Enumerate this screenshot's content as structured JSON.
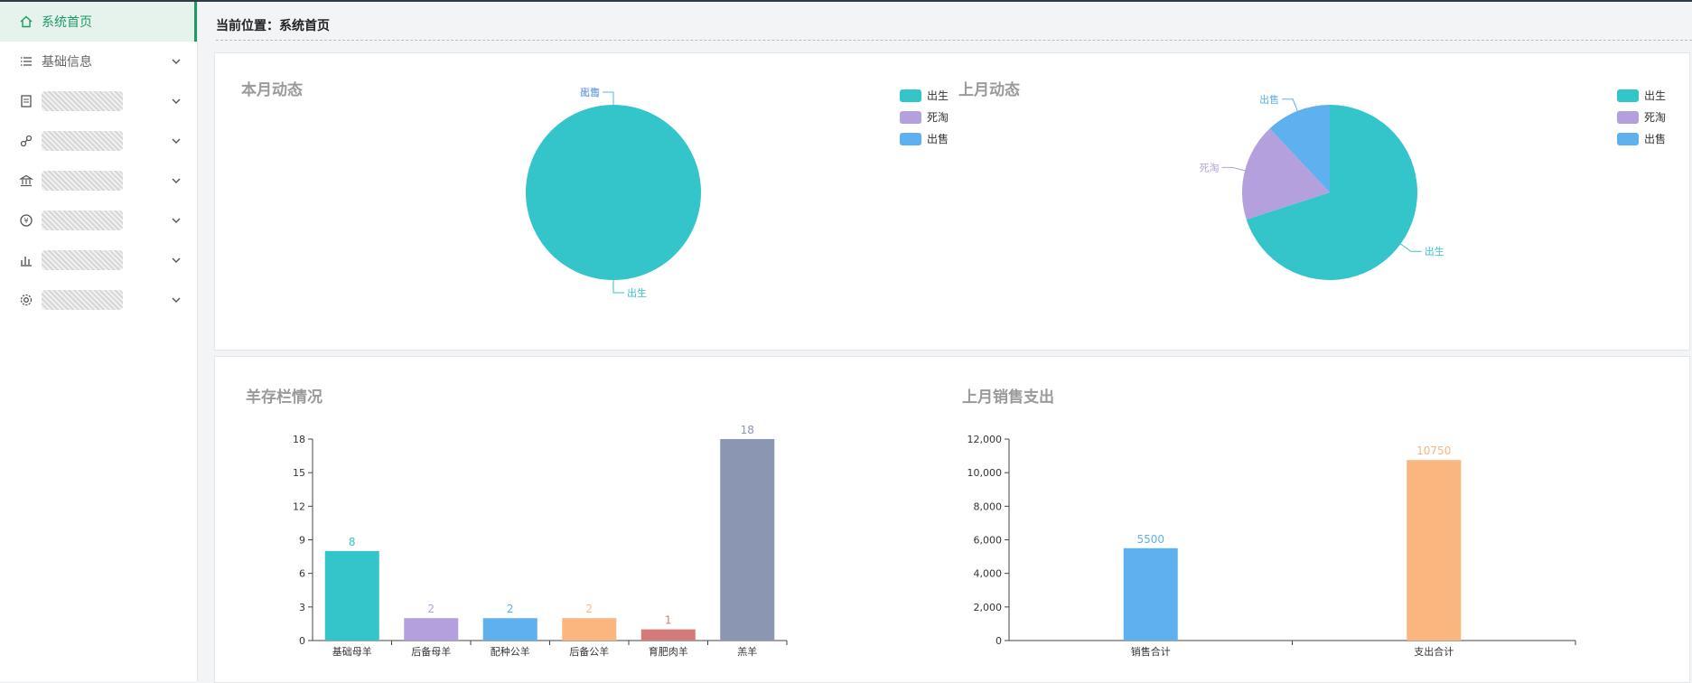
{
  "sidebar": {
    "items": [
      {
        "label": "系统首页",
        "icon": "home-icon",
        "active": true
      },
      {
        "label": "基础信息",
        "icon": "list-icon"
      },
      {
        "label": "",
        "icon": "document-icon"
      },
      {
        "label": "",
        "icon": "link-icon"
      },
      {
        "label": "",
        "icon": "bank-icon"
      },
      {
        "label": "",
        "icon": "money-icon"
      },
      {
        "label": "",
        "icon": "chart-icon"
      },
      {
        "label": "",
        "icon": "gear-icon"
      }
    ]
  },
  "breadcrumb": "当前位置：系统首页",
  "colors": {
    "green": "#1f9a62",
    "teal": "#33c5c9",
    "purple": "#b4a0dd",
    "blue": "#5eb0ee",
    "orange": "#fbb57e",
    "red": "#d47a7c",
    "slate": "#8b97b2"
  },
  "charts": {
    "this_month": {
      "title": "本月动态",
      "type": "pie",
      "legend": [
        "出生",
        "死淘",
        "出售"
      ],
      "slices": [
        {
          "name": "出生",
          "value": 1,
          "color": "#33c5c9"
        },
        {
          "name": "死淘",
          "value": 0,
          "color": "#b4a0dd"
        },
        {
          "name": "出售",
          "value": 0,
          "color": "#5eb0ee"
        }
      ]
    },
    "last_month": {
      "title": "上月动态",
      "type": "pie",
      "legend": [
        "出生",
        "死淘",
        "出售"
      ],
      "slices": [
        {
          "name": "出生",
          "value": 70,
          "color": "#33c5c9"
        },
        {
          "name": "死淘",
          "value": 18,
          "color": "#b4a0dd"
        },
        {
          "name": "出售",
          "value": 12,
          "color": "#5eb0ee"
        }
      ]
    },
    "stock": {
      "title": "羊存栏情况",
      "type": "bar",
      "categories": [
        "基础母羊",
        "后备母羊",
        "配种公羊",
        "后备公羊",
        "育肥肉羊",
        "羔羊"
      ],
      "values": [
        8,
        2,
        2,
        2,
        1,
        18
      ],
      "colors": [
        "#33c5c9",
        "#b4a0dd",
        "#5eb0ee",
        "#fbb57e",
        "#d47a7c",
        "#8b97b2"
      ],
      "ylim": [
        0,
        18
      ],
      "yticks": [
        "0",
        "3",
        "6",
        "9",
        "12",
        "15",
        "18"
      ]
    },
    "sales": {
      "title": "上月销售支出",
      "type": "bar",
      "categories": [
        "销售合计",
        "支出合计"
      ],
      "values": [
        5500,
        10750
      ],
      "colors": [
        "#5eb0ee",
        "#fbb57e"
      ],
      "ylim": [
        0,
        12000
      ],
      "yticks": [
        "0",
        "2,000",
        "4,000",
        "6,000",
        "8,000",
        "10,000",
        "12,000"
      ]
    }
  }
}
